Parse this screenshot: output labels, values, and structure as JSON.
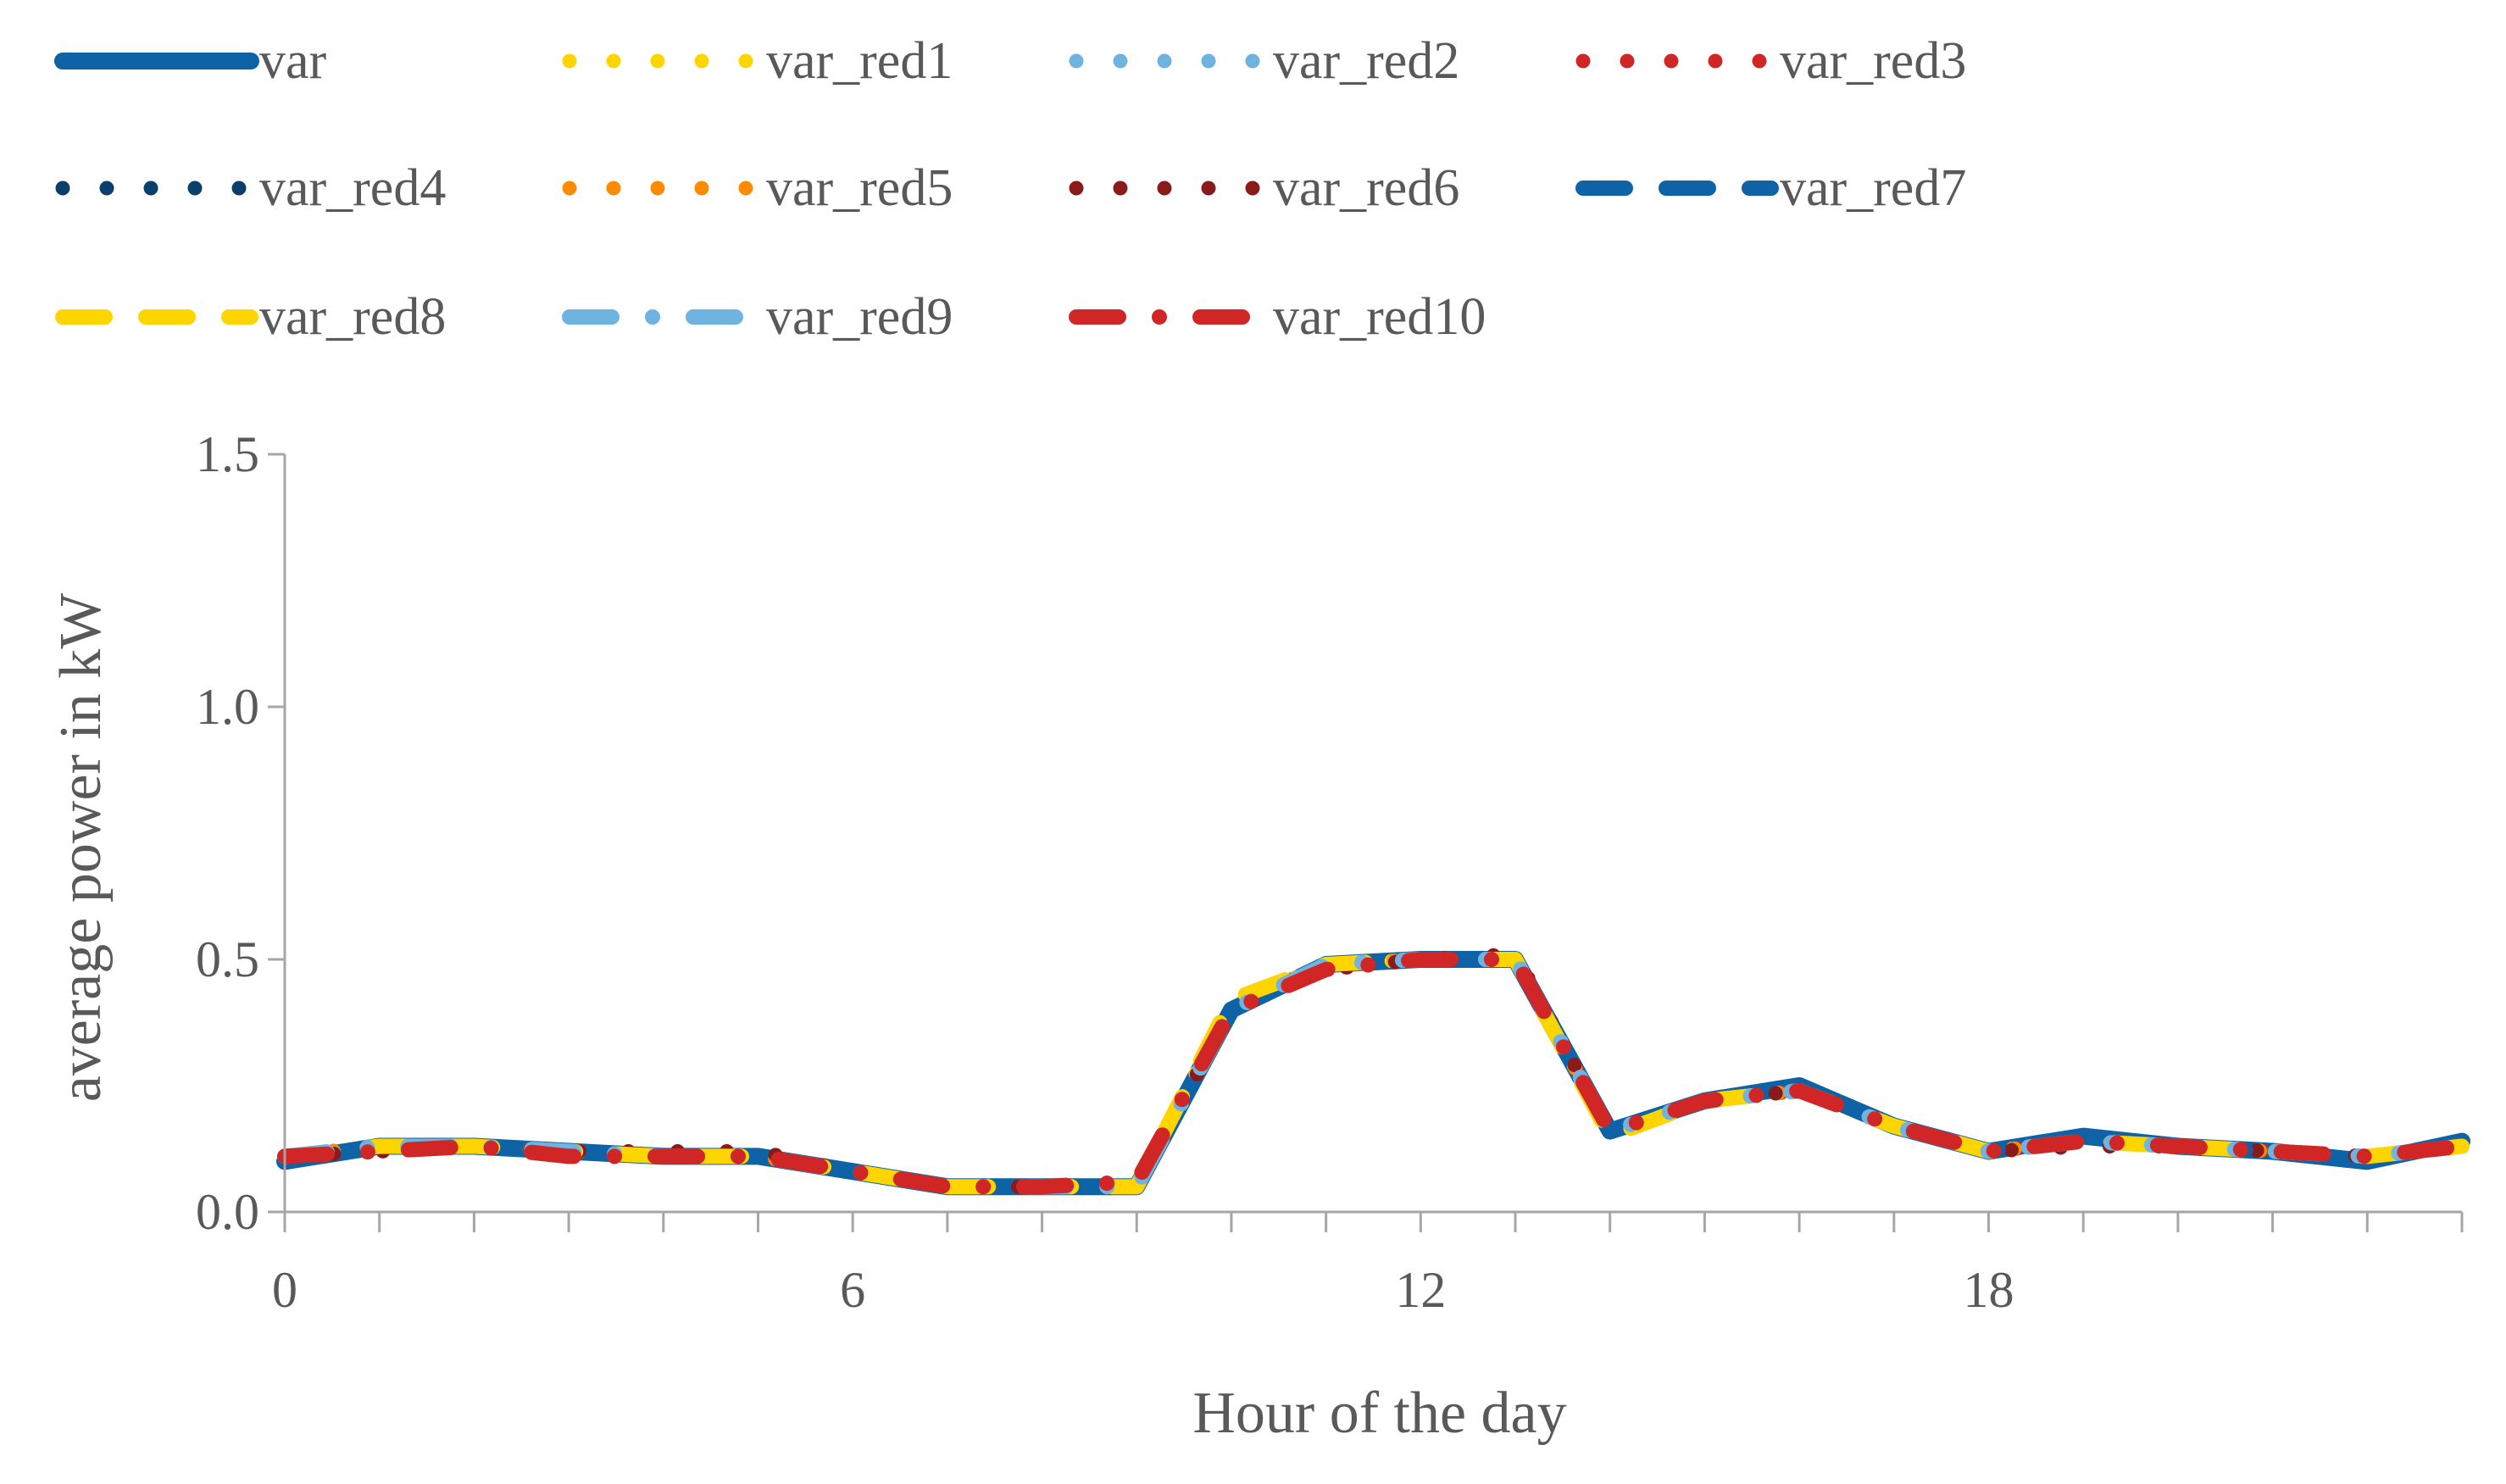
{
  "chart_data": {
    "type": "line",
    "title": "",
    "xlabel": "Hour of the day",
    "ylabel": "average  power in kW",
    "xlim": [
      0,
      23
    ],
    "ylim": [
      0,
      1.5
    ],
    "x_ticks": [
      0,
      6,
      12,
      18
    ],
    "x_tick_labels": [
      "0",
      "6",
      "12",
      "18"
    ],
    "y_ticks": [
      0,
      0.5,
      1.0,
      1.5
    ],
    "y_tick_labels": [
      "0.0",
      "0.5",
      "1.0",
      "1.5"
    ],
    "grid": false,
    "legend_position": "top",
    "x": [
      0,
      1,
      2,
      3,
      4,
      5,
      6,
      7,
      8,
      9,
      10,
      11,
      12,
      13,
      14,
      15,
      16,
      17,
      18,
      19,
      20,
      21,
      22,
      23
    ],
    "series": [
      {
        "name": "var",
        "color": "#0e63a6",
        "style": "solid",
        "values": [
          0.1,
          0.13,
          0.13,
          0.12,
          0.11,
          0.11,
          0.08,
          0.05,
          0.05,
          0.05,
          0.4,
          0.49,
          0.5,
          0.5,
          0.16,
          0.22,
          0.25,
          0.17,
          0.12,
          0.15,
          0.13,
          0.12,
          0.1,
          0.14
        ]
      },
      {
        "name": "var_red1",
        "color": "#ffd500",
        "style": "dot",
        "values": [
          0.11,
          0.13,
          0.13,
          0.12,
          0.11,
          0.11,
          0.08,
          0.05,
          0.05,
          0.05,
          0.41,
          0.49,
          0.5,
          0.5,
          0.16,
          0.22,
          0.24,
          0.17,
          0.12,
          0.14,
          0.13,
          0.12,
          0.11,
          0.13
        ]
      },
      {
        "name": "var_red2",
        "color": "#6fb3e0",
        "style": "dot",
        "values": [
          0.11,
          0.13,
          0.13,
          0.12,
          0.11,
          0.11,
          0.08,
          0.05,
          0.05,
          0.05,
          0.4,
          0.49,
          0.5,
          0.5,
          0.16,
          0.22,
          0.24,
          0.17,
          0.12,
          0.14,
          0.13,
          0.12,
          0.11,
          0.13
        ]
      },
      {
        "name": "var_red3",
        "color": "#d02626",
        "style": "dot",
        "values": [
          0.11,
          0.12,
          0.13,
          0.12,
          0.11,
          0.11,
          0.08,
          0.05,
          0.05,
          0.05,
          0.4,
          0.48,
          0.5,
          0.5,
          0.16,
          0.22,
          0.24,
          0.17,
          0.12,
          0.14,
          0.13,
          0.12,
          0.11,
          0.13
        ]
      },
      {
        "name": "var_red4",
        "color": "#0b3f6b",
        "style": "dot",
        "values": [
          0.11,
          0.13,
          0.13,
          0.12,
          0.11,
          0.11,
          0.08,
          0.05,
          0.05,
          0.05,
          0.4,
          0.49,
          0.5,
          0.5,
          0.16,
          0.22,
          0.24,
          0.17,
          0.12,
          0.14,
          0.13,
          0.12,
          0.11,
          0.13
        ]
      },
      {
        "name": "var_red5",
        "color": "#ff8c00",
        "style": "dot",
        "values": [
          0.11,
          0.13,
          0.13,
          0.12,
          0.11,
          0.11,
          0.08,
          0.05,
          0.05,
          0.05,
          0.4,
          0.49,
          0.5,
          0.5,
          0.16,
          0.22,
          0.24,
          0.17,
          0.12,
          0.14,
          0.13,
          0.12,
          0.11,
          0.13
        ]
      },
      {
        "name": "var_red6",
        "color": "#8b1a1a",
        "style": "dot",
        "values": [
          0.11,
          0.12,
          0.13,
          0.12,
          0.12,
          0.12,
          0.08,
          0.05,
          0.05,
          0.05,
          0.4,
          0.48,
          0.5,
          0.51,
          0.16,
          0.22,
          0.24,
          0.17,
          0.12,
          0.13,
          0.13,
          0.12,
          0.11,
          0.13
        ]
      },
      {
        "name": "var_red7",
        "color": "#0e63a6",
        "style": "dash",
        "values": [
          0.1,
          0.13,
          0.13,
          0.12,
          0.11,
          0.11,
          0.08,
          0.05,
          0.05,
          0.05,
          0.4,
          0.49,
          0.5,
          0.5,
          0.16,
          0.22,
          0.25,
          0.17,
          0.12,
          0.15,
          0.13,
          0.12,
          0.1,
          0.14
        ]
      },
      {
        "name": "var_red8",
        "color": "#ffd500",
        "style": "dash",
        "values": [
          0.11,
          0.13,
          0.13,
          0.12,
          0.11,
          0.11,
          0.08,
          0.05,
          0.05,
          0.05,
          0.42,
          0.49,
          0.5,
          0.5,
          0.15,
          0.22,
          0.24,
          0.17,
          0.12,
          0.14,
          0.13,
          0.12,
          0.11,
          0.13
        ]
      },
      {
        "name": "var_red9",
        "color": "#6fb3e0",
        "style": "dashdot",
        "values": [
          0.11,
          0.13,
          0.13,
          0.12,
          0.11,
          0.11,
          0.08,
          0.05,
          0.05,
          0.05,
          0.4,
          0.49,
          0.5,
          0.5,
          0.16,
          0.22,
          0.24,
          0.17,
          0.12,
          0.14,
          0.13,
          0.12,
          0.11,
          0.13
        ]
      },
      {
        "name": "var_red10",
        "color": "#d02626",
        "style": "dashdot",
        "values": [
          0.11,
          0.12,
          0.13,
          0.11,
          0.11,
          0.11,
          0.08,
          0.05,
          0.05,
          0.06,
          0.4,
          0.48,
          0.5,
          0.5,
          0.16,
          0.22,
          0.24,
          0.17,
          0.12,
          0.14,
          0.13,
          0.12,
          0.11,
          0.13
        ]
      }
    ]
  }
}
